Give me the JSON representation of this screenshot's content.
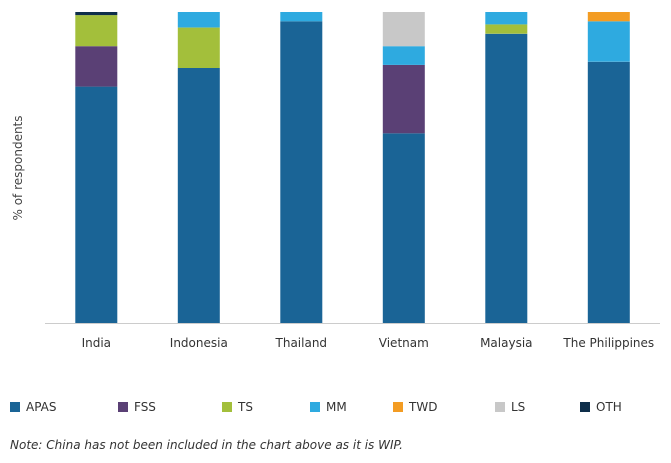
{
  "chart_data": {
    "type": "bar",
    "stacked": true,
    "ylabel": "% of respondents",
    "ylim": [
      0,
      100
    ],
    "grid": false,
    "legend_position": "bottom",
    "categories": [
      "India",
      "Indonesia",
      "Thailand",
      "Vietnam",
      "Malaysia",
      "The Philippines"
    ],
    "series": [
      {
        "name": "APAS",
        "color": "#1a6496",
        "values": [
          76,
          82,
          97,
          61,
          93,
          84
        ]
      },
      {
        "name": "FSS",
        "color": "#5a4075",
        "values": [
          13,
          0,
          0,
          22,
          0,
          0
        ]
      },
      {
        "name": "TS",
        "color": "#a3bf3b",
        "values": [
          10,
          13,
          0,
          0,
          3,
          0
        ]
      },
      {
        "name": "MM",
        "color": "#2eaae0",
        "values": [
          0,
          5,
          3,
          6,
          4,
          13
        ]
      },
      {
        "name": "TWD",
        "color": "#f39c23",
        "values": [
          0,
          0,
          0,
          0,
          0,
          3
        ]
      },
      {
        "name": "LS",
        "color": "#c8c8c8",
        "values": [
          0,
          0,
          0,
          11,
          0,
          0
        ]
      },
      {
        "name": "OTH",
        "color": "#0e2e4a",
        "values": [
          1,
          0,
          0,
          0,
          0,
          0
        ]
      }
    ]
  },
  "note": "Note: China has not been included in the chart above as it is WIP."
}
